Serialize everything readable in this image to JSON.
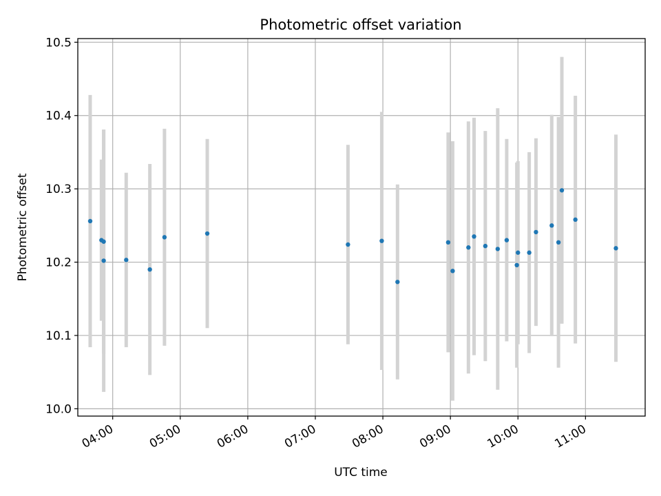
{
  "chart_data": {
    "type": "scatter",
    "title": "Photometric offset variation",
    "xlabel": "UTC time",
    "ylabel": "Photometric offset",
    "xlim": [
      "03:29",
      "11:53"
    ],
    "ylim": [
      9.99,
      10.505
    ],
    "x_ticks": [
      "04:00",
      "05:00",
      "06:00",
      "07:00",
      "08:00",
      "09:00",
      "10:00",
      "11:00"
    ],
    "y_ticks": [
      10.0,
      10.1,
      10.2,
      10.3,
      10.4,
      10.5
    ],
    "y_tick_labels": [
      "10.0",
      "10.1",
      "10.2",
      "10.3",
      "10.4",
      "10.5"
    ],
    "grid": true,
    "point_color": "#1f77b4",
    "errorbar_color": "#d3d3d3",
    "points": [
      {
        "x": "03:40",
        "y": 10.256,
        "err": 0.172
      },
      {
        "x": "03:50",
        "y": 10.23,
        "err": 0.11
      },
      {
        "x": "03:52",
        "y": 10.228,
        "err": 0.153
      },
      {
        "x": "03:52",
        "y": 10.202,
        "err": 0.179
      },
      {
        "x": "04:12",
        "y": 10.203,
        "err": 0.119
      },
      {
        "x": "04:33",
        "y": 10.19,
        "err": 0.144
      },
      {
        "x": "04:46",
        "y": 10.234,
        "err": 0.148
      },
      {
        "x": "05:24",
        "y": 10.239,
        "err": 0.129
      },
      {
        "x": "07:29",
        "y": 10.224,
        "err": 0.136
      },
      {
        "x": "07:59",
        "y": 10.229,
        "err": 0.176
      },
      {
        "x": "08:13",
        "y": 10.173,
        "err": 0.133
      },
      {
        "x": "08:58",
        "y": 10.227,
        "err": 0.15
      },
      {
        "x": "09:02",
        "y": 10.188,
        "err": 0.177
      },
      {
        "x": "09:16",
        "y": 10.22,
        "err": 0.172
      },
      {
        "x": "09:21",
        "y": 10.235,
        "err": 0.162
      },
      {
        "x": "09:31",
        "y": 10.222,
        "err": 0.157
      },
      {
        "x": "09:42",
        "y": 10.218,
        "err": 0.192
      },
      {
        "x": "09:50",
        "y": 10.23,
        "err": 0.138
      },
      {
        "x": "09:59",
        "y": 10.196,
        "err": 0.14
      },
      {
        "x": "10:00",
        "y": 10.213,
        "err": 0.125
      },
      {
        "x": "10:10",
        "y": 10.213,
        "err": 0.137
      },
      {
        "x": "10:16",
        "y": 10.241,
        "err": 0.128
      },
      {
        "x": "10:30",
        "y": 10.25,
        "err": 0.151
      },
      {
        "x": "10:36",
        "y": 10.227,
        "err": 0.171
      },
      {
        "x": "10:39",
        "y": 10.298,
        "err": 0.182
      },
      {
        "x": "10:51",
        "y": 10.258,
        "err": 0.169
      },
      {
        "x": "11:27",
        "y": 10.219,
        "err": 0.155
      }
    ]
  }
}
